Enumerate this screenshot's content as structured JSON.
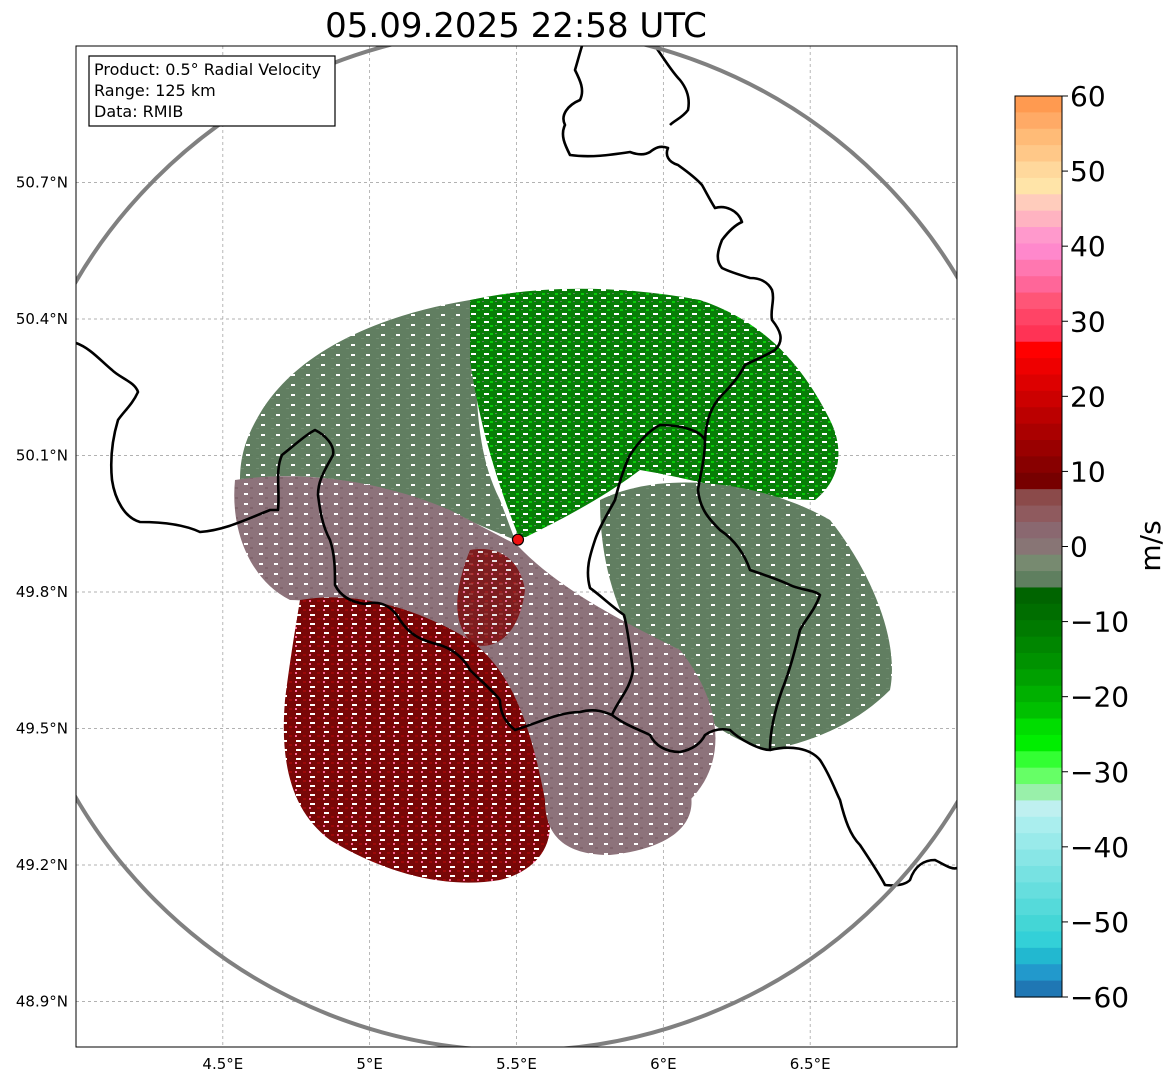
{
  "title": "05.09.2025 22:58 UTC",
  "info_box": {
    "product": "Product: 0.5° Radial Velocity",
    "range": "Range: 125 km",
    "data_source": "Data: RMIB"
  },
  "map": {
    "lon_range": [
      4.0,
      7.0
    ],
    "lat_range": [
      48.8,
      51.0
    ],
    "lon_ticks": [
      4.5,
      5.0,
      5.5,
      6.0,
      6.5
    ],
    "lon_labels": [
      "4.5°E",
      "5°E",
      "5.5°E",
      "6°E",
      "6.5°E"
    ],
    "lat_ticks": [
      48.9,
      49.2,
      49.5,
      49.8,
      50.1,
      50.4,
      50.7
    ],
    "lat_labels": [
      "48.9°N",
      "49.2°N",
      "49.5°N",
      "49.8°N",
      "50.1°N",
      "50.4°N",
      "50.7°N"
    ],
    "radar_site": {
      "lon": 5.505,
      "lat": 49.915
    },
    "range_ring_km": 125
  },
  "colorbar": {
    "label": "m/s",
    "min": -60,
    "max": 60,
    "ticks": [
      60,
      50,
      40,
      30,
      20,
      10,
      0,
      -10,
      -20,
      -30,
      -40,
      -50,
      -60
    ],
    "tick_labels": [
      "60",
      "50",
      "40",
      "30",
      "20",
      "10",
      "0",
      "−10",
      "−20",
      "−30",
      "−40",
      "−50",
      "−60"
    ],
    "colors_top_to_bottom": [
      "#ff9a50",
      "#ffaa66",
      "#ffbb77",
      "#ffc888",
      "#ffd89c",
      "#ffe4a8",
      "#ffccbc",
      "#ffb3c1",
      "#ff99cc",
      "#ff88cc",
      "#ff77b0",
      "#ff6699",
      "#ff5577",
      "#ff4466",
      "#ff3355",
      "#ff0000",
      "#ee0000",
      "#dd0000",
      "#cc0000",
      "#bb0000",
      "#aa0000",
      "#990000",
      "#880000",
      "#770000",
      "#8b4a4a",
      "#8f5a5e",
      "#8a6870",
      "#887575",
      "#778a70",
      "#5f7f5f",
      "#006400",
      "#006e00",
      "#007a00",
      "#008600",
      "#009200",
      "#00a000",
      "#00b000",
      "#00c000",
      "#00dd00",
      "#00ee00",
      "#33ff33",
      "#66ff66",
      "#99f0aa",
      "#bff0f0",
      "#aaeeee",
      "#99eaea",
      "#88e6e6",
      "#77e2e2",
      "#66dede",
      "#55dada",
      "#44d6d6",
      "#33d0d8",
      "#22b8d0",
      "#2299cc",
      "#1f77b4"
    ]
  },
  "legend_colors": {
    "approaching_green": "#008000",
    "receding_red": "#7a0000",
    "near_zero_green": "#5c7a5c",
    "near_zero_mauve": "#8a6f77"
  }
}
